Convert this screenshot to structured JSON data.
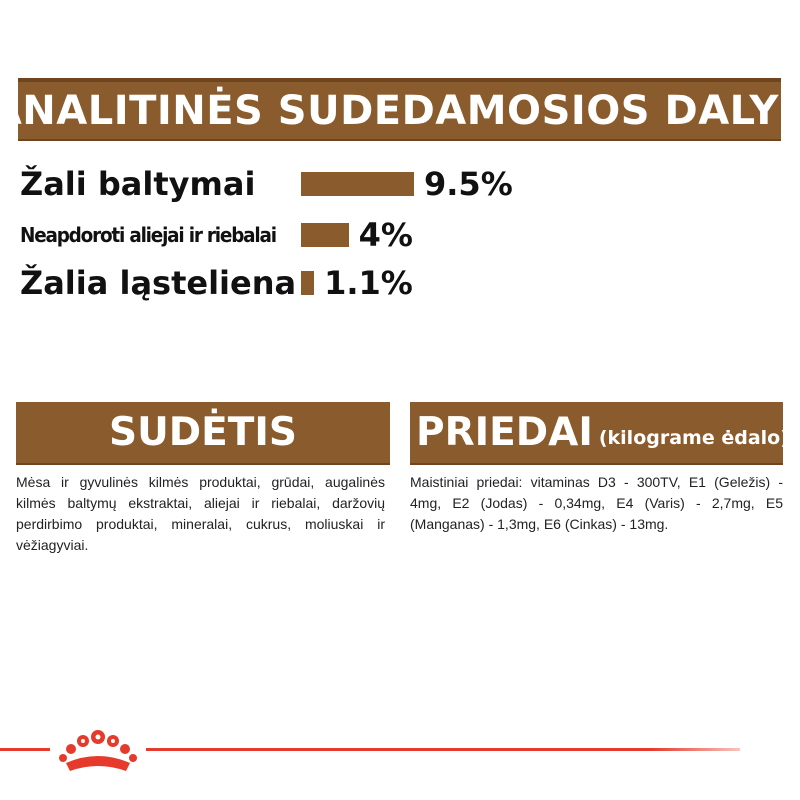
{
  "header": {
    "title": "ANALITINĖS SUDEDAMOSIOS DALYS"
  },
  "analytics": [
    {
      "label": "Žali baltymai",
      "value": "9.5%",
      "amount": 9.5
    },
    {
      "label": "Neapdoroti aliejai ir riebalai",
      "value": "4%",
      "amount": 4
    },
    {
      "label": "Žalia ląsteliena",
      "value": "1.1%",
      "amount": 1.1
    }
  ],
  "composition": {
    "title": "SUDĖTIS",
    "text": "Mėsa ir gyvulinės kilmės produktai, grūdai, augalinės kilmės baltymų ekstraktai, aliejai ir riebalai, daržovių perdirbimo produktai, mineralai, cukrus, moliuskai ir vėžiagyviai."
  },
  "additives": {
    "title": "PRIEDAI",
    "subtitle": "(kilograme ėdalo)",
    "text": "Maistiniai priedai: vitaminas D3 - 300TV, E1 (Geležis) - 4mg, E2 (Jodas) - 0,34mg, E4 (Varis) - 2,7mg, E5 (Manganas) - 1,3mg, E6 (Cinkas) - 13mg."
  },
  "colors": {
    "brand_brown": "#8a5b2c",
    "accent_red": "#e53a2c"
  },
  "icons": {
    "logo": "royal-canin-crown-icon"
  }
}
